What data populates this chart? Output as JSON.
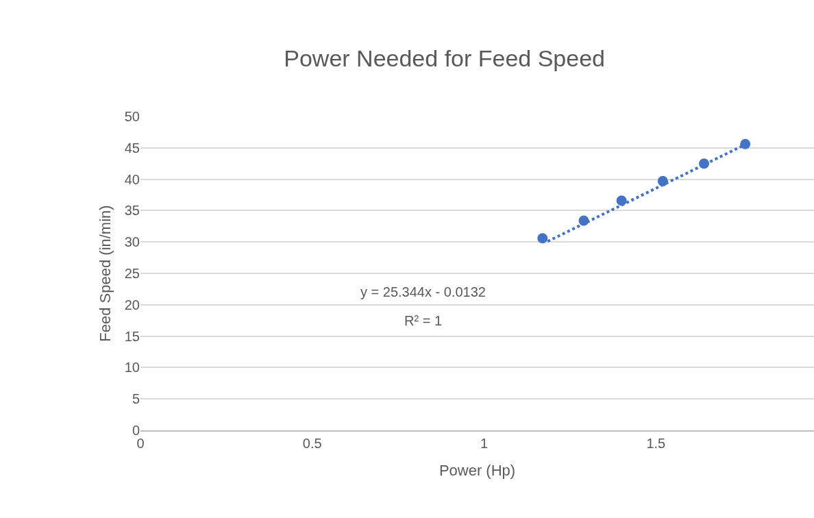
{
  "chart_data": {
    "type": "scatter",
    "title": "Power Needed for Feed Speed",
    "xlabel": "Power (Hp)",
    "ylabel": "Feed Speed (in/min)",
    "series": [
      {
        "color": "#4472c4",
        "x": [
          1.17,
          1.29,
          1.4,
          1.52,
          1.64,
          1.76
        ],
        "values": [
          30.6,
          33.4,
          36.6,
          39.7,
          42.5,
          45.6
        ],
        "marker": "circle"
      },
      {
        "type": "line",
        "color": "#4472c4",
        "x": [
          1.185,
          1.755
        ],
        "values": [
          30.1,
          45.4
        ],
        "line_style": "dotted",
        "marker": "none"
      }
    ],
    "annotations": [
      "y = 25.344x - 0.0132",
      "R² = 1"
    ],
    "xlim": [
      0,
      1.96
    ],
    "xticks": [
      0,
      0.5,
      1,
      1.5
    ],
    "ylim": [
      0,
      50
    ],
    "yticks": [
      0,
      5,
      10,
      15,
      20,
      25,
      30,
      35,
      40,
      45,
      50
    ],
    "grid": "y"
  }
}
